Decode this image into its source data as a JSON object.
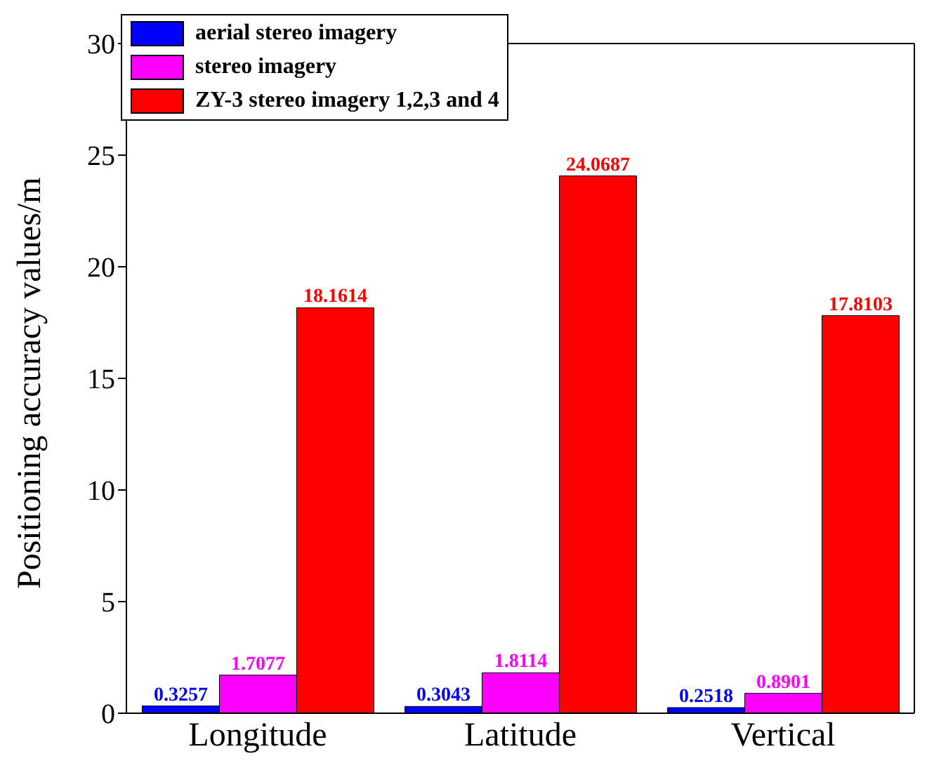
{
  "chart_data": {
    "type": "bar",
    "ylabel": "Positioning accuracy values/m",
    "categories": [
      "Longitude",
      "Latitude",
      "Vertical"
    ],
    "series": [
      {
        "name": "aerial stereo imagery",
        "color": "#0000ff",
        "values": [
          0.3257,
          0.3043,
          0.2518
        ]
      },
      {
        "name": "stereo imagery",
        "color": "#ff00ff",
        "values": [
          1.7077,
          1.8114,
          0.8901
        ]
      },
      {
        "name": "ZY-3 stereo imagery 1,2,3 and 4",
        "color": "#ff0000",
        "values": [
          18.1614,
          24.0687,
          17.8103
        ]
      }
    ],
    "ylim": [
      0,
      30
    ],
    "yticks": [
      0,
      5,
      10,
      15,
      20,
      25,
      30
    ],
    "grid": false,
    "legend": "top left",
    "data_labels": true
  }
}
